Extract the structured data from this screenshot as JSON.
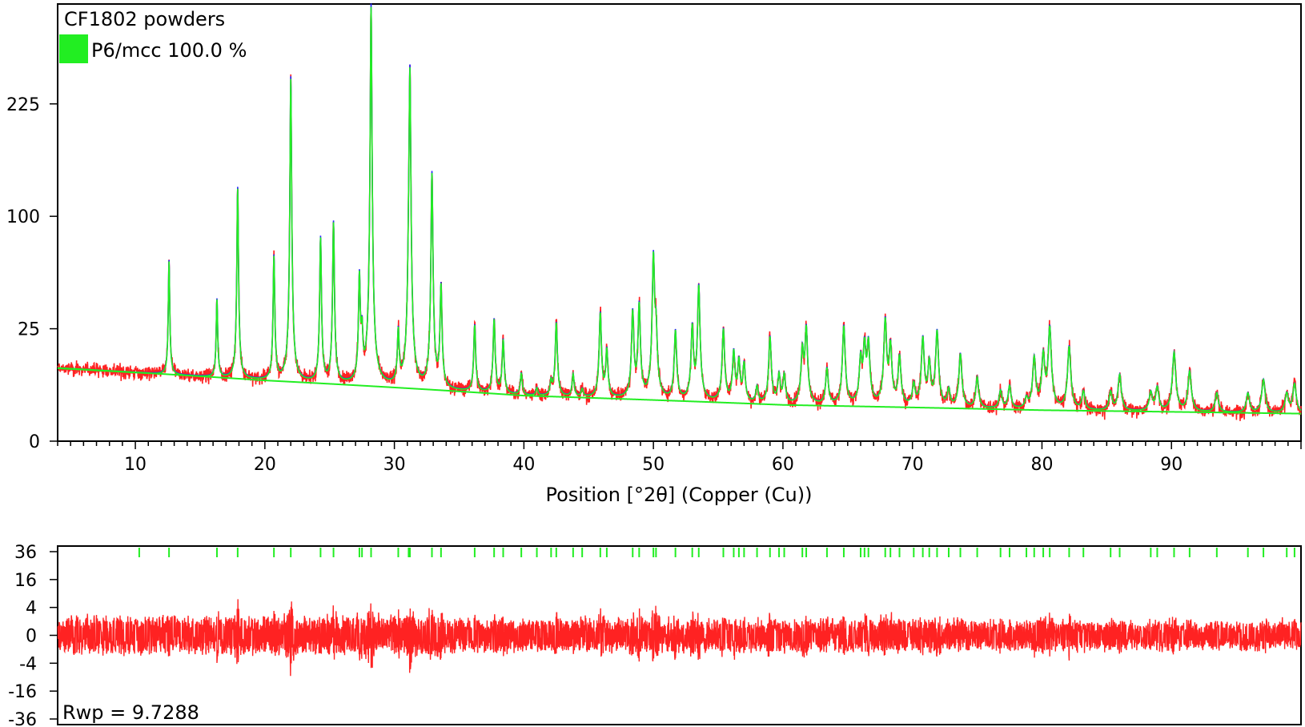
{
  "chart_data": [
    {
      "type": "line",
      "title": "CF1802 powders",
      "xlabel": "Position [°2θ] (Copper (Cu))",
      "ylabel": "",
      "xlim": [
        4,
        100
      ],
      "y_scale": "sqrt",
      "ylim": [
        0,
        378
      ],
      "yticks": [
        0,
        25,
        100,
        225
      ],
      "xticks": [
        10,
        20,
        30,
        40,
        50,
        60,
        70,
        80,
        90
      ],
      "grid": false,
      "legend": {
        "position": "top-left",
        "entries": [
          {
            "label": "P6/mcc 100.0 %",
            "color": "#22ee22"
          }
        ]
      },
      "series": [
        {
          "name": "observed",
          "color": "#ff2222"
        },
        {
          "name": "calculated",
          "color": "#2222ff"
        },
        {
          "name": "P6/mcc 100.0 %",
          "color": "#22ee22"
        }
      ],
      "background": {
        "x": [
          4,
          20,
          40,
          60,
          80,
          100
        ],
        "y": [
          10.6,
          7.3,
          4.1,
          2.6,
          1.9,
          1.5
        ]
      },
      "peaks": [
        {
          "x": 12.6,
          "y": 56
        },
        {
          "x": 16.3,
          "y": 32
        },
        {
          "x": 17.9,
          "y": 120
        },
        {
          "x": 20.7,
          "y": 61
        },
        {
          "x": 22.0,
          "y": 256
        },
        {
          "x": 24.3,
          "y": 76
        },
        {
          "x": 25.3,
          "y": 89
        },
        {
          "x": 27.3,
          "y": 48
        },
        {
          "x": 27.5,
          "y": 16
        },
        {
          "x": 28.2,
          "y": 372
        },
        {
          "x": 30.3,
          "y": 18
        },
        {
          "x": 31.2,
          "y": 263
        },
        {
          "x": 31.1,
          "y": 33
        },
        {
          "x": 32.9,
          "y": 138
        },
        {
          "x": 33.6,
          "y": 43
        },
        {
          "x": 36.2,
          "y": 22
        },
        {
          "x": 37.7,
          "y": 25
        },
        {
          "x": 38.4,
          "y": 16
        },
        {
          "x": 39.8,
          "y": 5
        },
        {
          "x": 41.0,
          "y": 1.5
        },
        {
          "x": 42.1,
          "y": 3
        },
        {
          "x": 42.5,
          "y": 24
        },
        {
          "x": 43.8,
          "y": 5
        },
        {
          "x": 44.5,
          "y": 1.5
        },
        {
          "x": 45.9,
          "y": 29
        },
        {
          "x": 46.4,
          "y": 13
        },
        {
          "x": 48.4,
          "y": 30
        },
        {
          "x": 48.9,
          "y": 34
        },
        {
          "x": 50.0,
          "y": 65
        },
        {
          "x": 50.2,
          "y": 20
        },
        {
          "x": 51.7,
          "y": 21
        },
        {
          "x": 53.0,
          "y": 23
        },
        {
          "x": 53.5,
          "y": 45
        },
        {
          "x": 55.4,
          "y": 22
        },
        {
          "x": 56.2,
          "y": 13
        },
        {
          "x": 56.6,
          "y": 10
        },
        {
          "x": 57.0,
          "y": 9
        },
        {
          "x": 58.0,
          "y": 3
        },
        {
          "x": 59.0,
          "y": 19
        },
        {
          "x": 59.7,
          "y": 6
        },
        {
          "x": 60.1,
          "y": 6
        },
        {
          "x": 61.5,
          "y": 14
        },
        {
          "x": 61.8,
          "y": 23
        },
        {
          "x": 63.4,
          "y": 8
        },
        {
          "x": 64.7,
          "y": 24
        },
        {
          "x": 66.0,
          "y": 11
        },
        {
          "x": 66.3,
          "y": 16
        },
        {
          "x": 66.6,
          "y": 17
        },
        {
          "x": 67.9,
          "y": 27
        },
        {
          "x": 68.3,
          "y": 16
        },
        {
          "x": 69.0,
          "y": 12
        },
        {
          "x": 70.1,
          "y": 4
        },
        {
          "x": 70.8,
          "y": 19
        },
        {
          "x": 71.3,
          "y": 10
        },
        {
          "x": 71.9,
          "y": 22
        },
        {
          "x": 72.8,
          "y": 3
        },
        {
          "x": 73.7,
          "y": 13
        },
        {
          "x": 75.0,
          "y": 6
        },
        {
          "x": 76.8,
          "y": 3
        },
        {
          "x": 77.5,
          "y": 4
        },
        {
          "x": 78.8,
          "y": 1.5
        },
        {
          "x": 79.4,
          "y": 12
        },
        {
          "x": 80.1,
          "y": 13
        },
        {
          "x": 80.6,
          "y": 24
        },
        {
          "x": 82.1,
          "y": 16
        },
        {
          "x": 83.2,
          "y": 3
        },
        {
          "x": 85.3,
          "y": 3
        },
        {
          "x": 86.0,
          "y": 7
        },
        {
          "x": 88.4,
          "y": 3
        },
        {
          "x": 88.9,
          "y": 4
        },
        {
          "x": 90.2,
          "y": 14
        },
        {
          "x": 91.4,
          "y": 8
        },
        {
          "x": 93.5,
          "y": 3
        },
        {
          "x": 95.9,
          "y": 3
        },
        {
          "x": 97.1,
          "y": 6
        },
        {
          "x": 98.9,
          "y": 3
        },
        {
          "x": 99.5,
          "y": 5
        }
      ]
    },
    {
      "type": "line",
      "title": "",
      "annotation": "Rwp = 9.7288",
      "xlim": [
        4,
        100
      ],
      "y_scale": "sqrt-signed",
      "ylim": [
        -36,
        36
      ],
      "yticks": [
        36,
        16,
        4,
        0,
        -4,
        -16,
        -36
      ],
      "grid": false,
      "series": [
        {
          "name": "difference",
          "color": "#ff2222"
        }
      ],
      "reflection_marks": {
        "color": "#22ee22",
        "x": [
          10.3,
          12.6,
          16.3,
          17.9,
          20.7,
          22.0,
          24.3,
          25.3,
          27.3,
          27.5,
          28.2,
          30.3,
          31.1,
          31.2,
          32.9,
          33.6,
          36.2,
          37.7,
          38.4,
          39.8,
          41.0,
          42.1,
          42.5,
          43.8,
          44.5,
          45.9,
          46.4,
          48.4,
          48.9,
          50.0,
          50.2,
          51.7,
          53.0,
          53.5,
          55.4,
          56.2,
          56.6,
          57.0,
          58.0,
          59.0,
          59.7,
          60.1,
          61.5,
          61.8,
          63.4,
          64.7,
          66.0,
          66.3,
          66.6,
          67.9,
          68.3,
          69.0,
          70.1,
          70.8,
          71.3,
          71.9,
          72.8,
          73.7,
          75.0,
          76.8,
          77.5,
          78.8,
          79.4,
          80.1,
          80.6,
          82.1,
          83.2,
          85.3,
          86.0,
          88.4,
          88.9,
          90.2,
          91.4,
          93.5,
          95.9,
          97.1,
          98.9,
          99.5
        ]
      }
    }
  ]
}
